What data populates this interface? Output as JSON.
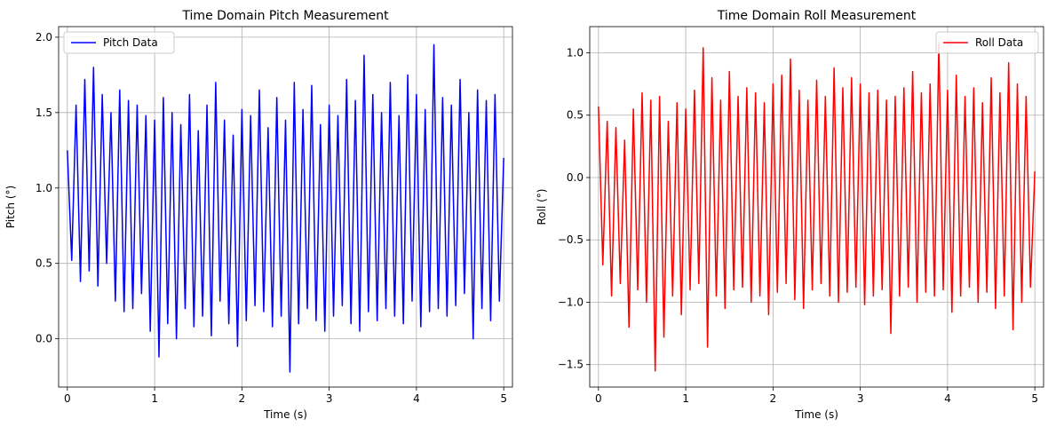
{
  "chart_data": [
    {
      "type": "line",
      "title": "Time Domain Pitch Measurement",
      "xlabel": "Time (s)",
      "ylabel": "Pitch (°)",
      "xlim": [
        -0.1,
        5.1
      ],
      "ylim": [
        -0.32,
        2.07
      ],
      "xticks": [
        0,
        1,
        2,
        3,
        4,
        5
      ],
      "xtick_labels": [
        "0",
        "1",
        "2",
        "3",
        "4",
        "5"
      ],
      "yticks": [
        0.0,
        0.5,
        1.0,
        1.5,
        2.0
      ],
      "ytick_labels": [
        "0.0",
        "0.5",
        "1.0",
        "1.5",
        "2.0"
      ],
      "grid": true,
      "legend_position": "top-left",
      "series": [
        {
          "name": "Pitch Data",
          "color": "#0000ff",
          "x": [
            0.0,
            0.05,
            0.1,
            0.15,
            0.2,
            0.25,
            0.3,
            0.35,
            0.4,
            0.45,
            0.5,
            0.55,
            0.6,
            0.65,
            0.7,
            0.75,
            0.8,
            0.85,
            0.9,
            0.95,
            1.0,
            1.05,
            1.1,
            1.15,
            1.2,
            1.25,
            1.3,
            1.35,
            1.4,
            1.45,
            1.5,
            1.55,
            1.6,
            1.65,
            1.7,
            1.75,
            1.8,
            1.85,
            1.9,
            1.95,
            2.0,
            2.05,
            2.1,
            2.15,
            2.2,
            2.25,
            2.3,
            2.35,
            2.4,
            2.45,
            2.5,
            2.55,
            2.6,
            2.65,
            2.7,
            2.75,
            2.8,
            2.85,
            2.9,
            2.95,
            3.0,
            3.05,
            3.1,
            3.15,
            3.2,
            3.25,
            3.3,
            3.35,
            3.4,
            3.45,
            3.5,
            3.55,
            3.6,
            3.65,
            3.7,
            3.75,
            3.8,
            3.85,
            3.9,
            3.95,
            4.0,
            4.05,
            4.1,
            4.15,
            4.2,
            4.25,
            4.3,
            4.35,
            4.4,
            4.45,
            4.5,
            4.55,
            4.6,
            4.65,
            4.7,
            4.75,
            4.8,
            4.85,
            4.9,
            4.95,
            5.0
          ],
          "values": [
            1.25,
            0.52,
            1.55,
            0.38,
            1.72,
            0.45,
            1.8,
            0.35,
            1.62,
            0.5,
            1.5,
            0.25,
            1.65,
            0.18,
            1.58,
            0.2,
            1.55,
            0.3,
            1.48,
            0.05,
            1.45,
            -0.12,
            1.6,
            0.1,
            1.5,
            0.0,
            1.42,
            0.2,
            1.62,
            0.08,
            1.38,
            0.15,
            1.55,
            0.02,
            1.7,
            0.25,
            1.45,
            0.1,
            1.35,
            -0.05,
            1.52,
            0.12,
            1.48,
            0.22,
            1.65,
            0.18,
            1.4,
            0.08,
            1.6,
            0.15,
            1.45,
            -0.22,
            1.7,
            0.1,
            1.52,
            0.2,
            1.68,
            0.12,
            1.42,
            0.05,
            1.55,
            0.15,
            1.48,
            0.22,
            1.72,
            0.1,
            1.58,
            0.05,
            1.88,
            0.18,
            1.62,
            0.12,
            1.5,
            0.2,
            1.7,
            0.15,
            1.48,
            0.1,
            1.75,
            0.25,
            1.62,
            0.08,
            1.52,
            0.18,
            1.95,
            0.2,
            1.6,
            0.15,
            1.55,
            0.22,
            1.72,
            0.3,
            1.5,
            0.0,
            1.65,
            0.2,
            1.58,
            0.12,
            1.62,
            0.25,
            1.2
          ]
        }
      ]
    },
    {
      "type": "line",
      "title": "Time Domain Roll Measurement",
      "xlabel": "Time (s)",
      "ylabel": "Roll (°)",
      "xlim": [
        -0.1,
        5.1
      ],
      "ylim": [
        -1.68,
        1.21
      ],
      "xticks": [
        0,
        1,
        2,
        3,
        4,
        5
      ],
      "xtick_labels": [
        "0",
        "1",
        "2",
        "3",
        "4",
        "5"
      ],
      "yticks": [
        -1.5,
        -1.0,
        -0.5,
        0.0,
        0.5,
        1.0
      ],
      "ytick_labels": [
        "−1.5",
        "−1.0",
        "−0.5",
        "0.0",
        "0.5",
        "1.0"
      ],
      "grid": true,
      "legend_position": "top-right",
      "series": [
        {
          "name": "Roll Data",
          "color": "#ff0000",
          "x": [
            0.0,
            0.05,
            0.1,
            0.15,
            0.2,
            0.25,
            0.3,
            0.35,
            0.4,
            0.45,
            0.5,
            0.55,
            0.6,
            0.65,
            0.7,
            0.75,
            0.8,
            0.85,
            0.9,
            0.95,
            1.0,
            1.05,
            1.1,
            1.15,
            1.2,
            1.25,
            1.3,
            1.35,
            1.4,
            1.45,
            1.5,
            1.55,
            1.6,
            1.65,
            1.7,
            1.75,
            1.8,
            1.85,
            1.9,
            1.95,
            2.0,
            2.05,
            2.1,
            2.15,
            2.2,
            2.25,
            2.3,
            2.35,
            2.4,
            2.45,
            2.5,
            2.55,
            2.6,
            2.65,
            2.7,
            2.75,
            2.8,
            2.85,
            2.9,
            2.95,
            3.0,
            3.05,
            3.1,
            3.15,
            3.2,
            3.25,
            3.3,
            3.35,
            3.4,
            3.45,
            3.5,
            3.55,
            3.6,
            3.65,
            3.7,
            3.75,
            3.8,
            3.85,
            3.9,
            3.95,
            4.0,
            4.05,
            4.1,
            4.15,
            4.2,
            4.25,
            4.3,
            4.35,
            4.4,
            4.45,
            4.5,
            4.55,
            4.6,
            4.65,
            4.7,
            4.75,
            4.8,
            4.85,
            4.9,
            4.95,
            5.0
          ],
          "values": [
            0.57,
            -0.7,
            0.45,
            -0.95,
            0.4,
            -0.85,
            0.3,
            -1.2,
            0.55,
            -0.9,
            0.68,
            -1.0,
            0.62,
            -1.55,
            0.65,
            -1.28,
            0.45,
            -0.95,
            0.6,
            -1.1,
            0.55,
            -0.9,
            0.7,
            -0.85,
            1.04,
            -1.36,
            0.8,
            -0.95,
            0.62,
            -1.05,
            0.85,
            -0.9,
            0.65,
            -0.88,
            0.72,
            -1.0,
            0.68,
            -0.95,
            0.6,
            -1.1,
            0.75,
            -0.92,
            0.82,
            -0.85,
            0.95,
            -0.98,
            0.7,
            -1.05,
            0.62,
            -0.9,
            0.78,
            -0.85,
            0.65,
            -0.95,
            0.88,
            -1.0,
            0.72,
            -0.92,
            0.8,
            -0.88,
            0.75,
            -1.02,
            0.68,
            -0.95,
            0.7,
            -0.9,
            0.62,
            -1.25,
            0.65,
            -0.95,
            0.72,
            -0.88,
            0.85,
            -1.0,
            0.68,
            -0.92,
            0.75,
            -0.95,
            1.08,
            -0.9,
            0.7,
            -1.08,
            0.82,
            -0.95,
            0.65,
            -0.88,
            0.72,
            -1.0,
            0.6,
            -0.92,
            0.8,
            -1.05,
            0.68,
            -0.95,
            0.92,
            -1.22,
            0.75,
            -1.0,
            0.65,
            -0.88,
            0.05
          ]
        }
      ]
    }
  ]
}
